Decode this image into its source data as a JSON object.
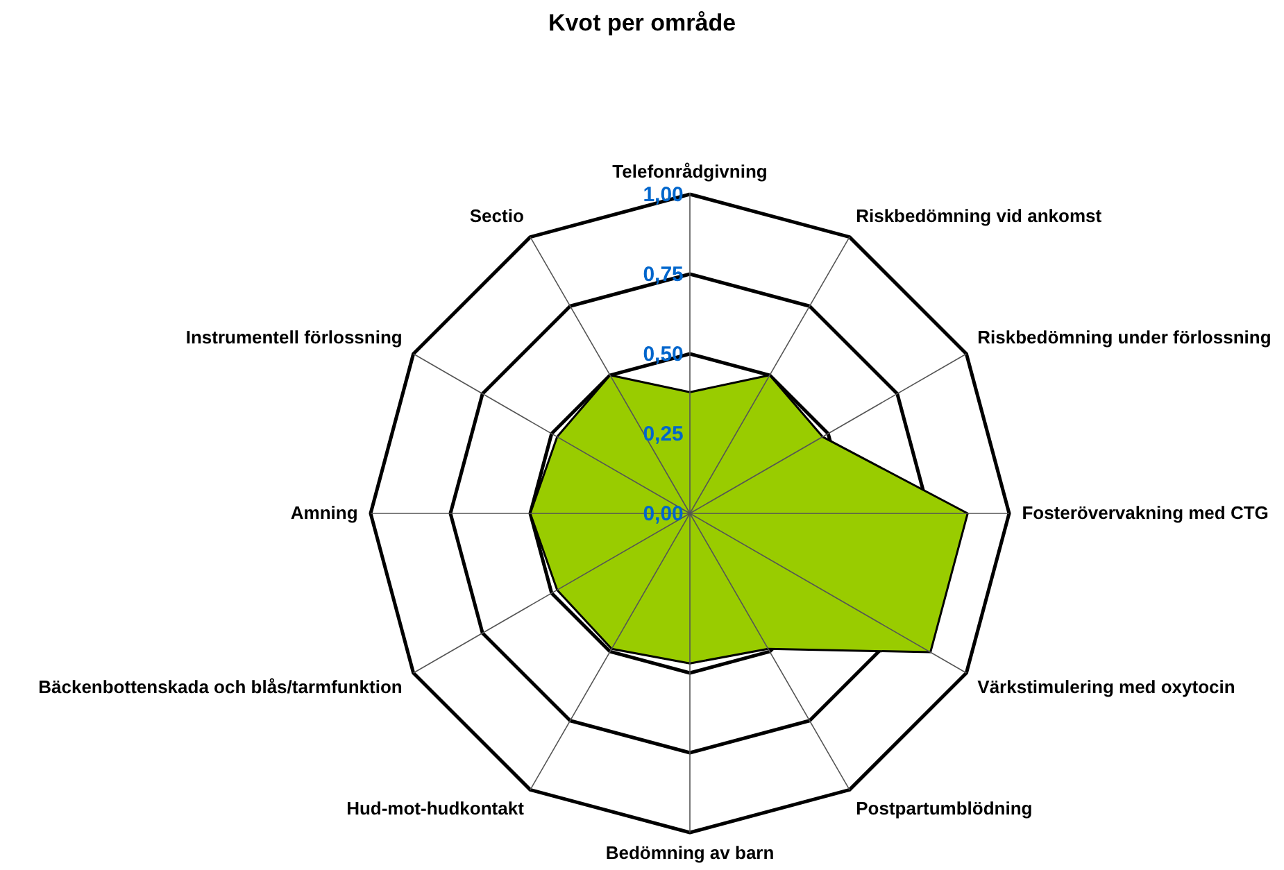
{
  "chart_data": {
    "type": "radar",
    "title": "Kvot per område",
    "categories": [
      "Telefonrådgivning",
      "Riskbedömning vid ankomst",
      "Riskbedömning under förlossning",
      "Fosterövervakning med CTG",
      "Värkstimulering med oxytocin",
      "Postpartumblödning",
      "Bedömning av barn",
      "Hud-mot-hudkontakt",
      "Bäckenbottenskada och blås/tarmfunktion",
      "Amning",
      "Instrumentell förlossning",
      "Sectio"
    ],
    "series": [
      {
        "color": "#99cc00",
        "values": [
          0.38,
          0.5,
          0.48,
          0.87,
          0.87,
          0.49,
          0.47,
          0.49,
          0.48,
          0.5,
          0.48,
          0.5
        ]
      }
    ],
    "ylim": [
      0,
      1
    ],
    "yticks": [
      {
        "value": 0,
        "label": "0,00"
      },
      {
        "value": 0.25,
        "label": "0,25"
      },
      {
        "value": 0.5,
        "label": "0,50"
      },
      {
        "value": 0.75,
        "label": "0,75"
      },
      {
        "value": 1,
        "label": "1,00"
      }
    ],
    "grid": true
  }
}
